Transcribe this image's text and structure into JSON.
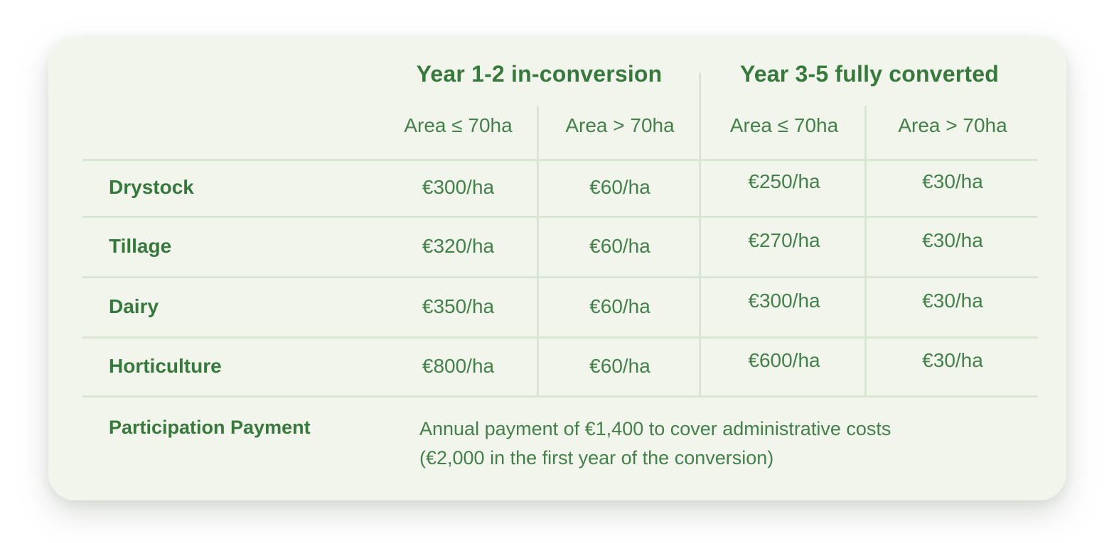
{
  "table": {
    "column_groups": [
      {
        "label": "Year 1-2 in-conversion"
      },
      {
        "label": "Year 3-5 fully converted"
      }
    ],
    "sub_headers": [
      "Area ≤ 70ha",
      "Area > 70ha",
      "Area ≤ 70ha",
      "Area > 70ha"
    ],
    "rows": [
      {
        "label": "Drystock",
        "values": [
          "€300/ha",
          "€60/ha",
          "€250/ha",
          "€30/ha"
        ]
      },
      {
        "label": "Tillage",
        "values": [
          "€320/ha",
          "€60/ha",
          "€270/ha",
          "€30/ha"
        ]
      },
      {
        "label": "Dairy",
        "values": [
          "€350/ha",
          "€60/ha",
          "€300/ha",
          "€30/ha"
        ]
      },
      {
        "label": "Horticulture",
        "values": [
          "€800/ha",
          "€60/ha",
          "€600/ha",
          "€30/ha"
        ]
      }
    ],
    "footer": {
      "label": "Participation Payment",
      "description_line1": "Annual payment of €1,400 to cover administrative costs",
      "description_line2": "(€2,000 in the first year of the conversion)"
    }
  },
  "colors": {
    "card_background": "#f1f5ec",
    "divider": "#d9e6d3",
    "text_green": "#44804a",
    "heading_green": "#37783c",
    "page_background": "#ffffff"
  }
}
